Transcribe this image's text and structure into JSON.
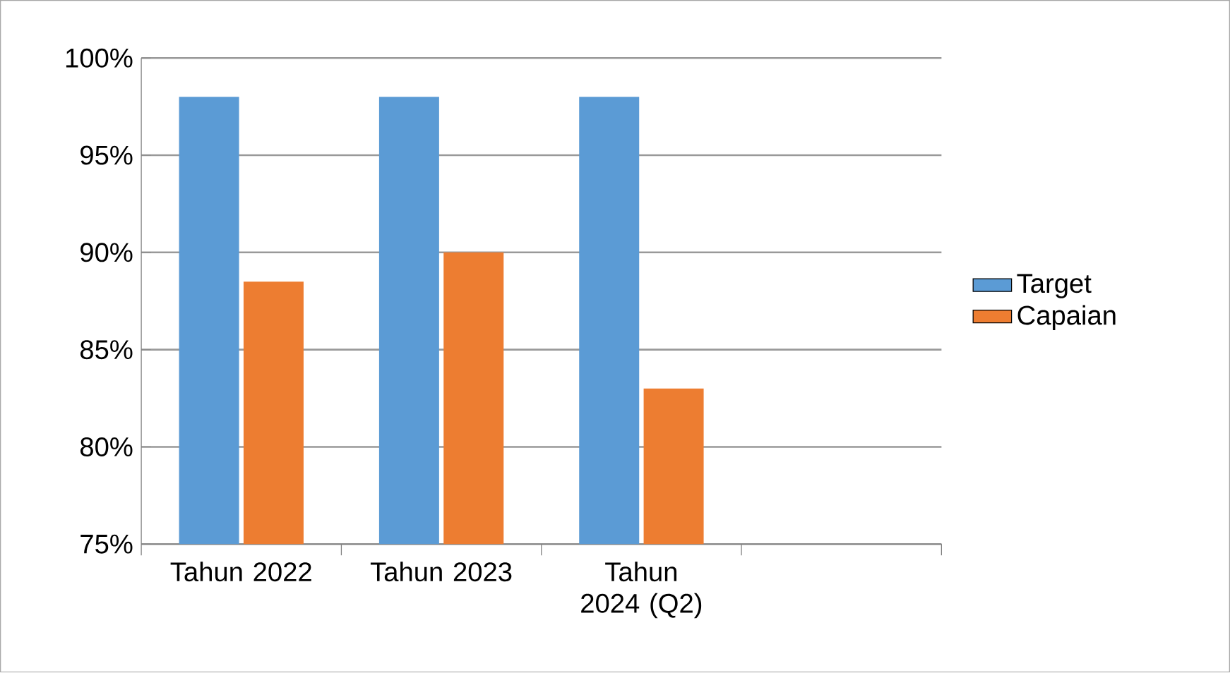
{
  "chart_data": {
    "type": "bar",
    "categories": [
      "Tahun 2022",
      "Tahun 2023",
      "Tahun 2024 (Q2)",
      null
    ],
    "series": [
      {
        "name": "Target",
        "color": "#5b9bd5",
        "values": [
          98,
          98,
          98,
          null
        ]
      },
      {
        "name": "Capaian",
        "color": "#ed7d31",
        "values": [
          88.5,
          90,
          83,
          null
        ]
      }
    ],
    "ylim": [
      75,
      100
    ],
    "yticks": [
      {
        "value": 75,
        "label": "75%"
      },
      {
        "value": 80,
        "label": "80%"
      },
      {
        "value": 85,
        "label": "85%"
      },
      {
        "value": 90,
        "label": "90%"
      },
      {
        "value": 95,
        "label": "95%"
      },
      {
        "value": 100,
        "label": "100%"
      }
    ],
    "grid": "y",
    "legend": "right"
  }
}
